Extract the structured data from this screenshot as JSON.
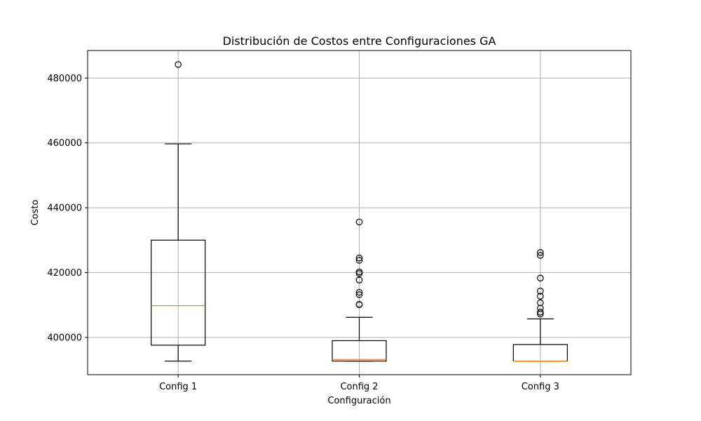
{
  "chart_data": {
    "type": "box",
    "title": "Distribución de Costos entre Configuraciones GA",
    "xlabel": "Configuración",
    "ylabel": "Costo",
    "ylim": [
      388500,
      488500
    ],
    "yticks": [
      400000,
      420000,
      440000,
      460000,
      480000
    ],
    "grid": true,
    "categories": [
      "Config 1",
      "Config 2",
      "Config 3"
    ],
    "series": [
      {
        "category": "Config 1",
        "whisker_low": 392700,
        "q1": 397600,
        "median": 409800,
        "q3": 430000,
        "whisker_high": 459700,
        "outliers": [
          484200
        ]
      },
      {
        "category": "Config 2",
        "whisker_low": 392700,
        "q1": 392700,
        "median": 393200,
        "q3": 399000,
        "whisker_high": 406200,
        "outliers": [
          410100,
          410200,
          413200,
          413900,
          417700,
          419700,
          420200,
          423800,
          424500,
          435600
        ]
      },
      {
        "category": "Config 3",
        "whisker_low": 392700,
        "q1": 392700,
        "median": 392700,
        "q3": 397800,
        "whisker_high": 405700,
        "outliers": [
          407200,
          407800,
          409000,
          410700,
          412700,
          414300,
          418300,
          425300,
          426200
        ]
      }
    ]
  }
}
